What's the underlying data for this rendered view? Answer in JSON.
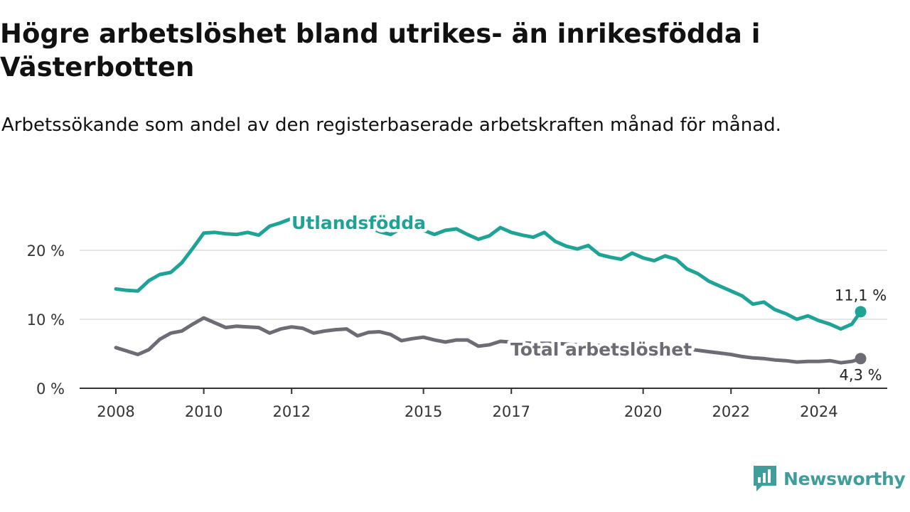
{
  "header": {
    "title": "Högre arbetslöshet bland utrikes- än inrikesfödda i Västerbotten",
    "subtitle": "Arbetssökande som andel av den registerbaserade arbetskraften månad för månad."
  },
  "brand": {
    "name": "Newsworthy",
    "icon": "newsworthy-logo-icon",
    "color": "#3f9e9a"
  },
  "chart_data": {
    "type": "line",
    "title": "Högre arbetslöshet bland utrikes- än inrikesfödda i Västerbotten",
    "subtitle": "Arbetssökande som andel av den registerbaserade arbetskraften månad för månad.",
    "xlabel": "",
    "ylabel": "",
    "xlim": [
      2008.0,
      2025.75
    ],
    "ylim": [
      0,
      22
    ],
    "x_ticks": [
      2008,
      2010,
      2012,
      2015,
      2017,
      2020,
      2022,
      2024
    ],
    "x_tick_labels": [
      "2008",
      "2010",
      "2012",
      "2015",
      "2017",
      "2020",
      "2022",
      "2024"
    ],
    "y_ticks": [
      0,
      10,
      20
    ],
    "y_tick_labels": [
      "0 %",
      "10 %",
      "20 %"
    ],
    "grid": "horizontal",
    "legend": "inline labels",
    "series": [
      {
        "name": "Utlandsfödda",
        "color": "#1fa396",
        "end_label": "11,1 %",
        "x": [
          2008.0,
          2008.25,
          2008.5,
          2008.75,
          2009.0,
          2009.25,
          2009.5,
          2009.75,
          2010.0,
          2010.25,
          2010.5,
          2010.75,
          2011.0,
          2011.25,
          2011.5,
          2011.75,
          2012.0,
          2012.25,
          2012.5,
          2012.75,
          2013.0,
          2013.25,
          2013.5,
          2013.75,
          2014.0,
          2014.25,
          2014.5,
          2014.75,
          2015.0,
          2015.25,
          2015.5,
          2015.75,
          2016.0,
          2016.25,
          2016.5,
          2016.75,
          2017.0,
          2017.25,
          2017.5,
          2017.75,
          2018.0,
          2018.25,
          2018.5,
          2018.75,
          2019.0,
          2019.25,
          2019.5,
          2019.75,
          2020.0,
          2020.25,
          2020.5,
          2020.75,
          2021.0,
          2021.25,
          2021.5,
          2021.75,
          2022.0,
          2022.25,
          2022.5,
          2022.75,
          2023.0,
          2023.25,
          2023.5,
          2023.75,
          2024.0,
          2024.25,
          2024.5,
          2024.75,
          2024.95
        ],
        "y": [
          14.4,
          14.2,
          14.1,
          15.6,
          16.5,
          16.8,
          18.2,
          20.3,
          22.5,
          22.6,
          22.4,
          22.3,
          22.6,
          22.2,
          23.5,
          24.0,
          24.6,
          24.8,
          24.7,
          24.6,
          24.5,
          24.3,
          23.9,
          23.4,
          22.7,
          22.3,
          23.2,
          23.3,
          22.9,
          22.3,
          22.9,
          23.1,
          22.3,
          21.6,
          22.1,
          23.3,
          22.6,
          22.2,
          21.9,
          22.6,
          21.3,
          20.6,
          20.2,
          20.7,
          19.4,
          19.0,
          18.7,
          19.6,
          18.9,
          18.5,
          19.2,
          18.7,
          17.3,
          16.6,
          15.5,
          14.8,
          14.1,
          13.4,
          12.2,
          12.5,
          11.4,
          10.8,
          10.0,
          10.5,
          9.8,
          9.3,
          8.6,
          9.3,
          11.1
        ]
      },
      {
        "name": "Total arbetslöshet",
        "color": "#6d6b73",
        "end_label": "4,3 %",
        "x": [
          2008.0,
          2008.25,
          2008.5,
          2008.75,
          2009.0,
          2009.25,
          2009.5,
          2009.75,
          2010.0,
          2010.25,
          2010.5,
          2010.75,
          2011.0,
          2011.25,
          2011.5,
          2011.75,
          2012.0,
          2012.25,
          2012.5,
          2012.75,
          2013.0,
          2013.25,
          2013.5,
          2013.75,
          2014.0,
          2014.25,
          2014.5,
          2014.75,
          2015.0,
          2015.25,
          2015.5,
          2015.75,
          2016.0,
          2016.25,
          2016.5,
          2016.75,
          2017.0,
          2017.25,
          2017.5,
          2017.75,
          2018.0,
          2018.25,
          2018.5,
          2018.75,
          2019.0,
          2019.25,
          2019.5,
          2019.75,
          2020.0,
          2020.25,
          2020.5,
          2020.75,
          2021.0,
          2021.25,
          2021.5,
          2021.75,
          2022.0,
          2022.25,
          2022.5,
          2022.75,
          2023.0,
          2023.25,
          2023.5,
          2023.75,
          2024.0,
          2024.25,
          2024.5,
          2024.75,
          2024.95
        ],
        "y": [
          5.9,
          5.4,
          4.9,
          5.6,
          7.1,
          8.0,
          8.3,
          9.3,
          10.2,
          9.5,
          8.8,
          9.0,
          8.9,
          8.8,
          8.0,
          8.6,
          8.9,
          8.7,
          8.0,
          8.3,
          8.5,
          8.6,
          7.6,
          8.1,
          8.2,
          7.8,
          6.9,
          7.2,
          7.4,
          7.0,
          6.7,
          7.0,
          7.0,
          6.1,
          6.3,
          6.8,
          6.7,
          6.6,
          6.5,
          6.5,
          6.5,
          6.4,
          6.3,
          6.3,
          6.2,
          6.2,
          6.1,
          6.2,
          6.0,
          5.9,
          6.0,
          5.9,
          5.7,
          5.5,
          5.3,
          5.1,
          4.9,
          4.6,
          4.4,
          4.3,
          4.1,
          4.0,
          3.8,
          3.9,
          3.9,
          4.0,
          3.7,
          3.9,
          4.3
        ]
      }
    ]
  }
}
